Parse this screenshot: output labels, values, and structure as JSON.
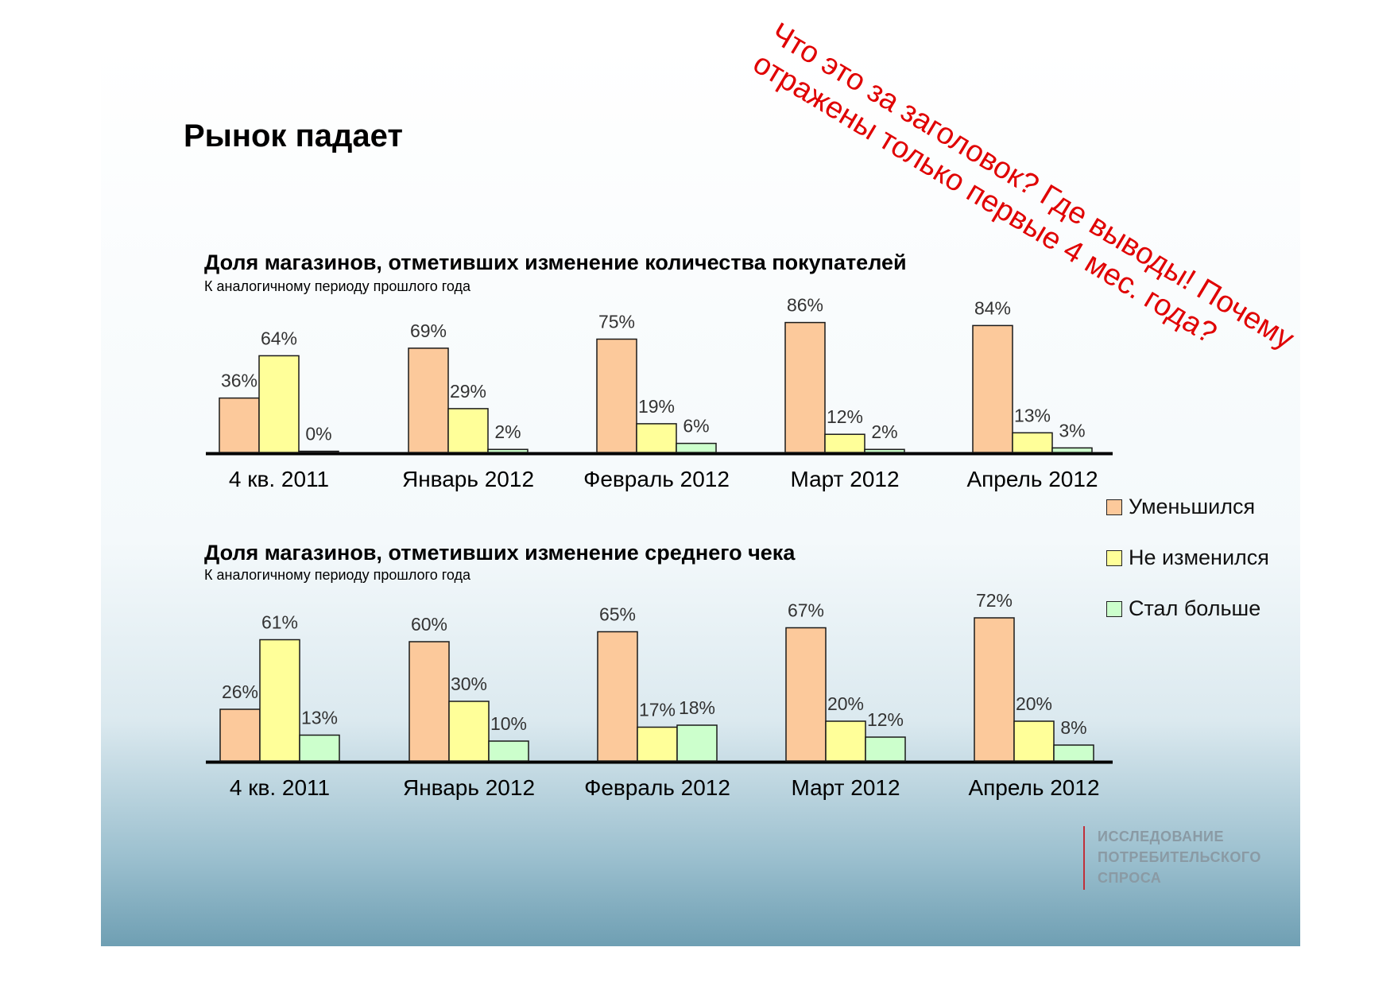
{
  "slide": {
    "title": "Рынок падает",
    "annotation_lines": [
      "Что это за заголовок? Где выводы! Почему",
      "отражены только первые 4 мес. года?"
    ],
    "annotation_color": "#e00000",
    "logo_lines": [
      "ИССЛЕДОВАНИЕ",
      "ПОТРЕБИТЕЛЬСКОГО",
      "СПРОСА"
    ]
  },
  "legend": [
    {
      "label": "Уменьшился",
      "color": "#fcc99b"
    },
    {
      "label": "Не изменился",
      "color": "#ffff99"
    },
    {
      "label": "Стал больше",
      "color": "#ccffcc"
    }
  ],
  "chart_data": [
    {
      "type": "bar",
      "title": "Доля магазинов, отметивших изменение количества покупателей",
      "subtitle": "К аналогичному периоду прошлого года",
      "categories": [
        "4 кв. 2011",
        "Январь 2012",
        "Февраль 2012",
        "Март 2012",
        "Апрель 2012"
      ],
      "series": [
        {
          "name": "Уменьшился",
          "values": [
            36,
            69,
            75,
            86,
            84
          ],
          "labels": [
            "36%",
            "69%",
            "75%",
            "86%",
            "84%"
          ]
        },
        {
          "name": "Не изменился",
          "values": [
            64,
            29,
            19,
            12,
            13
          ],
          "labels": [
            "64%",
            "29%",
            "19%",
            "12%",
            "13%"
          ]
        },
        {
          "name": "Стал больше",
          "values": [
            0,
            2,
            6,
            2,
            3
          ],
          "labels": [
            "0%",
            "2%",
            "6%",
            "2%",
            "3%"
          ]
        }
      ],
      "ylim": [
        0,
        100
      ],
      "grid": false,
      "legend": "right"
    },
    {
      "type": "bar",
      "title": "Доля магазинов, отметивших изменение среднего чека",
      "subtitle": "К аналогичному периоду прошлого года",
      "categories": [
        "4 кв. 2011",
        "Январь 2012",
        "Февраль 2012",
        "Март 2012",
        "Апрель 2012"
      ],
      "series": [
        {
          "name": "Уменьшился",
          "values": [
            26,
            60,
            65,
            67,
            72
          ],
          "labels": [
            "26%",
            "60%",
            "65%",
            "67%",
            "72%"
          ]
        },
        {
          "name": "Не изменился",
          "values": [
            61,
            30,
            17,
            20,
            20
          ],
          "labels": [
            "61%",
            "30%",
            "17%",
            "20%",
            "20%"
          ]
        },
        {
          "name": "Стал больше",
          "values": [
            13,
            10,
            18,
            12,
            8
          ],
          "labels": [
            "13%",
            "10%",
            "18%",
            "12%",
            "8%"
          ]
        }
      ],
      "ylim": [
        0,
        100
      ],
      "grid": false,
      "legend": "right"
    }
  ]
}
